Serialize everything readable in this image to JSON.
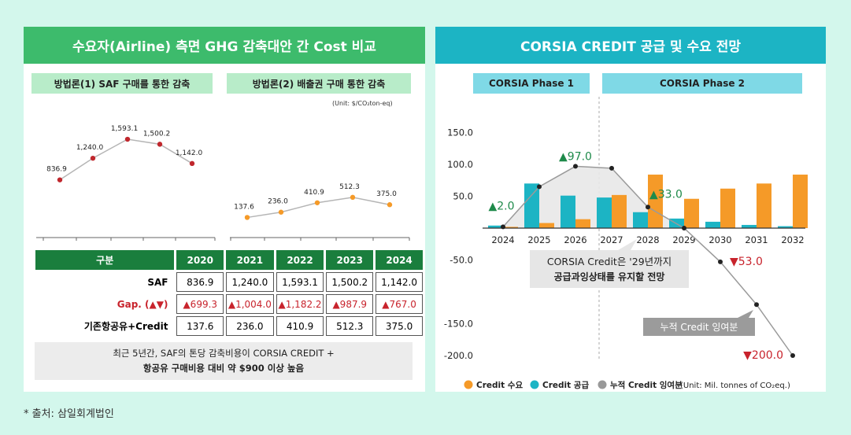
{
  "left": {
    "title": "수요자(Airline) 측면 GHG 감축대안 간 Cost 비교",
    "method1_label": "방법론(1) SAF 구매를 통한 감축",
    "method2_label": "방법론(2) 배출권 구매 통한 감축",
    "unit": "(Unit: $/CO₂ton-eq)",
    "table": {
      "header": [
        "구분",
        "2020",
        "2021",
        "2022",
        "2023",
        "2024"
      ],
      "rows": [
        {
          "label": "SAF",
          "values": [
            "836.9",
            "1,240.0",
            "1,593.1",
            "1,500.2",
            "1,142.0"
          ]
        },
        {
          "label": "Gap. (▲▼)",
          "values": [
            "▲699.3",
            "▲1,004.0",
            "▲1,182.2",
            "▲987.9",
            "▲767.0"
          ]
        },
        {
          "label": "기존항공유+Credit",
          "values": [
            "137.6",
            "236.0",
            "410.9",
            "512.3",
            "375.0"
          ]
        }
      ]
    },
    "note_line1": "최근 5년간, SAF의 톤당 감축비용이 CORSIA CREDIT +",
    "note_line2": "항공유 구매비용 대비 약 $900 이상 높음"
  },
  "right": {
    "title": "CORSIA CREDIT 공급 및 수요 전망",
    "phase1": "CORSIA Phase 1",
    "phase2": "CORSIA Phase 2",
    "callout_gray_line1": "CORSIA Credit은 '29년까지",
    "callout_gray_line2": "공급과잉상태를 유지할 전망",
    "callout_dark": "누적 Credit 잉여분"
  },
  "footnote": "* 출처: 삼일회계법인",
  "chart_data": [
    {
      "type": "line",
      "title": "방법론(1) SAF 구매를 통한 감축",
      "categories": [
        "2020",
        "2021",
        "2022",
        "2023",
        "2024"
      ],
      "values": [
        836.9,
        1240.0,
        1593.1,
        1500.2,
        1142.0
      ],
      "labels": [
        "836.9",
        "1,240.0",
        "1,593.1",
        "1,500.2",
        "1,142.0"
      ],
      "color": "#c0272d"
    },
    {
      "type": "line",
      "title": "방법론(2) 배출권 구매 통한 감축",
      "categories": [
        "2020",
        "2021",
        "2022",
        "2023",
        "2024"
      ],
      "values": [
        137.6,
        236.0,
        410.9,
        512.3,
        375.0
      ],
      "labels": [
        "137.6",
        "236.0",
        "410.9",
        "512.3",
        "375.0"
      ],
      "color": "#f59a28"
    },
    {
      "type": "bar",
      "categories": [
        "2024",
        "2025",
        "2026",
        "2027",
        "2028",
        "2029",
        "2030",
        "2031",
        "2032"
      ],
      "ylim": [
        -200,
        150
      ],
      "yticks": [
        "150.0",
        "100.0",
        "50.0",
        "-50.0",
        "-150.0",
        "-200.0"
      ],
      "ytick_values": [
        150,
        100,
        50,
        -50,
        -150,
        -200
      ],
      "series": [
        {
          "name": "Credit 수요",
          "color": "#f59a28",
          "values": [
            2,
            8,
            14,
            52,
            84,
            46,
            62,
            70,
            84
          ]
        },
        {
          "name": "Credit 공급",
          "color": "#1cb4c4",
          "values": [
            4,
            70,
            51,
            48,
            25,
            15,
            10,
            5,
            3
          ]
        },
        {
          "name": "누적 Credit 잉여분",
          "color": "#999999",
          "type": "line",
          "values": [
            2,
            65,
            97,
            94,
            33,
            0,
            -53,
            -120,
            -200
          ]
        }
      ],
      "annotations": [
        {
          "text": "▲2.0",
          "color": "#1e8a4a"
        },
        {
          "text": "▲97.0",
          "color": "#1e8a4a"
        },
        {
          "text": "▲33.0",
          "color": "#1e8a4a"
        },
        {
          "text": "▼53.0",
          "color": "#c8232c"
        },
        {
          "text": "▼200.0",
          "color": "#c8232c"
        }
      ],
      "legend_unit": "(Unit: Mil. tonnes of CO₂eq.)"
    }
  ]
}
